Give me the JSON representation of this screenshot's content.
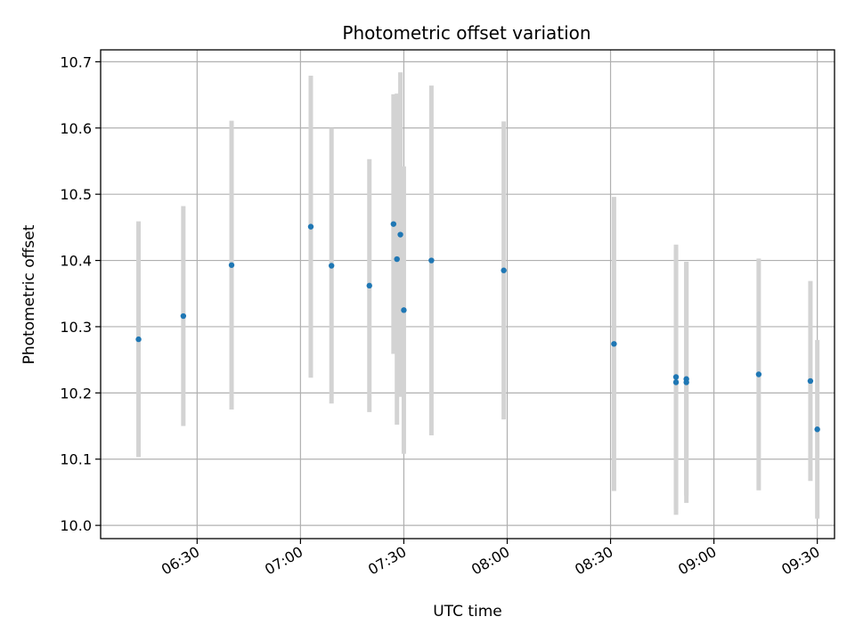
{
  "chart_data": {
    "type": "scatter",
    "title": "Photometric offset variation",
    "xlabel": "UTC time",
    "ylabel": "Photometric offset",
    "xlim": [
      "06:02",
      "09:35"
    ],
    "ylim": [
      9.98,
      10.718
    ],
    "x_ticks": [
      "06:30",
      "07:00",
      "07:30",
      "08:00",
      "08:30",
      "09:00",
      "09:30"
    ],
    "y_ticks": [
      "10.0",
      "10.1",
      "10.2",
      "10.3",
      "10.4",
      "10.5",
      "10.6",
      "10.7"
    ],
    "grid": true,
    "colors": {
      "marker": "#1f77b4",
      "error_bar": "#d3d3d3",
      "grid": "#b0b0b0"
    },
    "points": [
      {
        "x": "06:13",
        "y": 10.281,
        "yerr": 0.178
      },
      {
        "x": "06:26",
        "y": 10.316,
        "yerr": 0.166
      },
      {
        "x": "06:40",
        "y": 10.393,
        "yerr": 0.218
      },
      {
        "x": "07:03",
        "y": 10.451,
        "yerr": 0.228
      },
      {
        "x": "07:09",
        "y": 10.392,
        "yerr": 0.208
      },
      {
        "x": "07:20",
        "y": 10.362,
        "yerr": 0.191
      },
      {
        "x": "07:27",
        "y": 10.455,
        "yerr": 0.196
      },
      {
        "x": "07:28",
        "y": 10.402,
        "yerr": 0.25
      },
      {
        "x": "07:29",
        "y": 10.439,
        "yerr": 0.245
      },
      {
        "x": "07:30",
        "y": 10.325,
        "yerr": 0.217
      },
      {
        "x": "07:38",
        "y": 10.4,
        "yerr": 0.264
      },
      {
        "x": "07:59",
        "y": 10.385,
        "yerr": 0.225
      },
      {
        "x": "08:31",
        "y": 10.274,
        "yerr": 0.222
      },
      {
        "x": "08:49",
        "y": 10.224,
        "yerr": 0.2
      },
      {
        "x": "08:49",
        "y": 10.216,
        "yerr": 0.2
      },
      {
        "x": "08:52",
        "y": 10.216,
        "yerr": 0.182
      },
      {
        "x": "08:52",
        "y": 10.221,
        "yerr": 0.176
      },
      {
        "x": "09:13",
        "y": 10.228,
        "yerr": 0.175
      },
      {
        "x": "09:28",
        "y": 10.218,
        "yerr": 0.151
      },
      {
        "x": "09:30",
        "y": 10.145,
        "yerr": 0.135
      }
    ]
  }
}
